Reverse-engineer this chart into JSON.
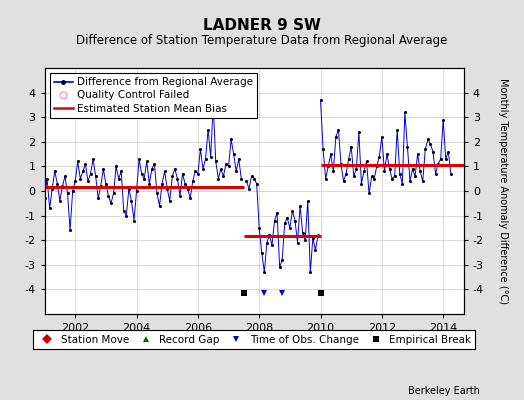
{
  "title": "LADNER 9 SW",
  "subtitle": "Difference of Station Temperature Data from Regional Average",
  "ylabel": "Monthly Temperature Anomaly Difference (°C)",
  "xlim": [
    2001.0,
    2014.67
  ],
  "ylim": [
    -5,
    5
  ],
  "yticks": [
    -4,
    -3,
    -2,
    -1,
    0,
    1,
    2,
    3,
    4
  ],
  "xticks": [
    2002,
    2004,
    2006,
    2008,
    2010,
    2012,
    2014
  ],
  "background_color": "#e0e0e0",
  "plot_bg_color": "#ffffff",
  "grid_color": "#c8c8c8",
  "line_color": "#0000dd",
  "bias_color": "#dd0000",
  "title_fontsize": 11,
  "subtitle_fontsize": 8.5,
  "tick_fontsize": 8,
  "legend_fontsize": 7.5,
  "watermark": "Berkeley Earth",
  "segments": [
    {
      "x_start": 2001.0,
      "x_end": 2007.5,
      "bias": 0.18
    },
    {
      "x_start": 2007.5,
      "x_end": 2010.0,
      "bias": -1.82
    },
    {
      "x_start": 2010.0,
      "x_end": 2014.67,
      "bias": 1.05
    }
  ],
  "break_times": [
    2007.5,
    2010.0
  ],
  "obs_change_times": [
    2008.17,
    2008.75
  ],
  "data_x": [
    2001.0,
    2001.083,
    2001.167,
    2001.25,
    2001.333,
    2001.417,
    2001.5,
    2001.583,
    2001.667,
    2001.75,
    2001.833,
    2001.917,
    2002.0,
    2002.083,
    2002.167,
    2002.25,
    2002.333,
    2002.417,
    2002.5,
    2002.583,
    2002.667,
    2002.75,
    2002.833,
    2002.917,
    2003.0,
    2003.083,
    2003.167,
    2003.25,
    2003.333,
    2003.417,
    2003.5,
    2003.583,
    2003.667,
    2003.75,
    2003.833,
    2003.917,
    2004.0,
    2004.083,
    2004.167,
    2004.25,
    2004.333,
    2004.417,
    2004.5,
    2004.583,
    2004.667,
    2004.75,
    2004.833,
    2004.917,
    2005.0,
    2005.083,
    2005.167,
    2005.25,
    2005.333,
    2005.417,
    2005.5,
    2005.583,
    2005.667,
    2005.75,
    2005.833,
    2005.917,
    2006.0,
    2006.083,
    2006.167,
    2006.25,
    2006.333,
    2006.417,
    2006.5,
    2006.583,
    2006.667,
    2006.75,
    2006.833,
    2006.917,
    2007.0,
    2007.083,
    2007.167,
    2007.25,
    2007.333,
    2007.417,
    2007.583,
    2007.667,
    2007.75,
    2007.833,
    2007.917,
    2008.0,
    2008.083,
    2008.167,
    2008.25,
    2008.333,
    2008.417,
    2008.5,
    2008.583,
    2008.667,
    2008.75,
    2008.833,
    2008.917,
    2009.0,
    2009.083,
    2009.167,
    2009.25,
    2009.333,
    2009.417,
    2009.5,
    2009.583,
    2009.667,
    2009.75,
    2009.833,
    2009.917,
    2010.0,
    2010.083,
    2010.167,
    2010.25,
    2010.333,
    2010.417,
    2010.5,
    2010.583,
    2010.667,
    2010.75,
    2010.833,
    2010.917,
    2011.0,
    2011.083,
    2011.167,
    2011.25,
    2011.333,
    2011.417,
    2011.5,
    2011.583,
    2011.667,
    2011.75,
    2011.833,
    2011.917,
    2012.0,
    2012.083,
    2012.167,
    2012.25,
    2012.333,
    2012.417,
    2012.5,
    2012.583,
    2012.667,
    2012.75,
    2012.833,
    2012.917,
    2013.0,
    2013.083,
    2013.167,
    2013.25,
    2013.333,
    2013.417,
    2013.5,
    2013.583,
    2013.667,
    2013.75,
    2013.833,
    2013.917,
    2014.0,
    2014.083,
    2014.167,
    2014.25
  ],
  "data_y": [
    -0.3,
    0.5,
    -0.7,
    0.1,
    0.8,
    0.3,
    -0.4,
    0.2,
    0.6,
    -0.1,
    -1.6,
    0.0,
    0.4,
    1.2,
    0.5,
    0.8,
    1.1,
    0.4,
    0.7,
    1.3,
    0.6,
    -0.3,
    0.2,
    0.9,
    0.3,
    -0.2,
    -0.5,
    -0.1,
    1.0,
    0.5,
    0.8,
    -0.8,
    -1.0,
    0.1,
    -0.4,
    -1.2,
    0.0,
    1.3,
    0.7,
    0.5,
    1.2,
    0.3,
    0.9,
    1.1,
    -0.1,
    -0.6,
    0.3,
    0.8,
    0.1,
    -0.4,
    0.6,
    0.9,
    0.5,
    -0.2,
    0.7,
    0.3,
    0.1,
    -0.3,
    0.4,
    0.8,
    0.7,
    1.7,
    0.9,
    1.3,
    2.5,
    1.4,
    3.5,
    1.2,
    0.5,
    0.9,
    0.6,
    1.1,
    1.0,
    2.1,
    1.5,
    0.8,
    1.3,
    0.5,
    0.4,
    0.1,
    0.6,
    0.5,
    0.3,
    -1.5,
    -2.5,
    -3.3,
    -2.1,
    -1.8,
    -2.2,
    -1.2,
    -0.9,
    -3.1,
    -2.8,
    -1.3,
    -1.1,
    -1.5,
    -0.8,
    -1.2,
    -2.1,
    -0.6,
    -1.7,
    -2.0,
    -0.4,
    -3.3,
    -1.9,
    -2.4,
    -1.8,
    3.7,
    1.7,
    0.5,
    1.0,
    1.5,
    0.8,
    2.2,
    2.5,
    1.1,
    0.4,
    0.7,
    1.3,
    1.8,
    0.6,
    0.9,
    2.4,
    0.3,
    0.8,
    1.2,
    -0.1,
    0.6,
    0.5,
    1.0,
    1.4,
    2.2,
    0.8,
    1.5,
    0.9,
    0.5,
    0.6,
    2.5,
    0.7,
    0.3,
    3.2,
    1.8,
    0.4,
    0.9,
    0.6,
    1.5,
    0.8,
    0.4,
    1.7,
    2.1,
    1.9,
    1.6,
    0.7,
    1.1,
    1.3,
    2.9,
    1.3,
    1.6,
    0.7
  ]
}
